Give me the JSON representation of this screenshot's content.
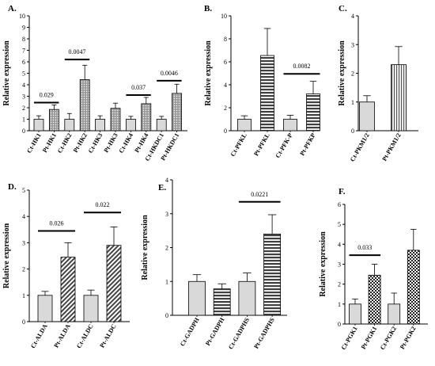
{
  "colors": {
    "light_bar": "#d9d9d9",
    "stroke": "#000000",
    "background": "#ffffff"
  },
  "chart_data": [
    {
      "panel": "A.",
      "type": "bar",
      "ylabel": "Relative expression",
      "ylim": [
        0,
        10
      ],
      "yticks": [
        0,
        1,
        2,
        3,
        4,
        5,
        6,
        7,
        8,
        9,
        10
      ],
      "categories": [
        "Ct-HK1",
        "Pt-HK1",
        "Ct-HK2",
        "Pt-HK2",
        "Ct-HK3",
        "Pt-HK3",
        "Ct-HK4",
        "Pt-HK4",
        "Ct-HKDC1",
        "Pt-HKDC1"
      ],
      "values": [
        1.0,
        1.85,
        1.0,
        4.45,
        1.0,
        1.95,
        1.0,
        2.35,
        1.0,
        3.25
      ],
      "errors": [
        0.3,
        0.4,
        0.5,
        1.25,
        0.3,
        0.45,
        0.25,
        0.55,
        0.25,
        0.8
      ],
      "fills": [
        "light",
        "dots",
        "light",
        "dots",
        "light",
        "dots",
        "light",
        "dots",
        "light",
        "dots"
      ],
      "annotations": [
        {
          "label": "0.029",
          "from": 0,
          "to": 1,
          "y": 2.45
        },
        {
          "label": "0.0047",
          "from": 2,
          "to": 3,
          "y": 6.2
        },
        {
          "label": "0.037",
          "from": 6,
          "to": 7,
          "y": 3.1
        },
        {
          "label": "0.0046",
          "from": 8,
          "to": 9,
          "y": 4.35
        }
      ]
    },
    {
      "panel": "B.",
      "type": "bar",
      "ylabel": "Relative expression",
      "ylim": [
        0,
        10
      ],
      "yticks": [
        0,
        2,
        4,
        6,
        8,
        10
      ],
      "categories": [
        "Ct-PFKL",
        "Pt-PFKL",
        "Ct-PFK-P",
        "Pt-PFKP"
      ],
      "values": [
        1.0,
        6.55,
        1.0,
        3.2
      ],
      "errors": [
        0.3,
        2.35,
        0.35,
        1.1
      ],
      "fills": [
        "light",
        "hstripe",
        "light",
        "hstripe"
      ],
      "annotations": [
        {
          "label": "0.0082",
          "from": 2,
          "to": 3,
          "y": 4.95
        }
      ]
    },
    {
      "panel": "C.",
      "type": "bar",
      "ylabel": "Relative expression",
      "ylim": [
        0,
        4
      ],
      "yticks": [
        0,
        1,
        2,
        3,
        4
      ],
      "categories": [
        "Ct-PKM1/2",
        "Pt-PKM1/2"
      ],
      "values": [
        1.0,
        2.3
      ],
      "errors": [
        0.22,
        0.63
      ],
      "fills": [
        "light",
        "vstripe"
      ],
      "annotations": []
    },
    {
      "panel": "D.",
      "type": "bar",
      "ylabel": "Relative expression",
      "ylim": [
        0,
        5
      ],
      "yticks": [
        0,
        1,
        2,
        3,
        4,
        5
      ],
      "categories": [
        "Ct-ALDA",
        "Pt-ALDA",
        "Ct-ALDC",
        "Pt-ALDC"
      ],
      "values": [
        1.0,
        2.45,
        1.0,
        2.9
      ],
      "errors": [
        0.15,
        0.55,
        0.2,
        0.7
      ],
      "fills": [
        "light",
        "diag",
        "light",
        "diag"
      ],
      "annotations": [
        {
          "label": "0.026",
          "from": 0,
          "to": 1,
          "y": 3.45
        },
        {
          "label": "0.022",
          "from": 2,
          "to": 3,
          "y": 4.15
        }
      ]
    },
    {
      "panel": "E.",
      "type": "bar",
      "ylabel": "Relative expression",
      "ylim": [
        0,
        4
      ],
      "yticks": [
        0,
        1,
        2,
        3,
        4
      ],
      "categories": [
        "Ct-GADPH",
        "Pt-GADPH",
        "Ct-GADPHS",
        "Pt-GADPHS"
      ],
      "values": [
        1.0,
        0.78,
        1.0,
        2.4
      ],
      "errors": [
        0.2,
        0.15,
        0.25,
        0.57
      ],
      "fills": [
        "light",
        "hstripe",
        "light",
        "hstripe"
      ],
      "annotations": [
        {
          "label": "0.0221",
          "from": 2,
          "to": 3,
          "y": 3.35
        }
      ]
    },
    {
      "panel": "F.",
      "type": "bar",
      "ylabel": "Relative expression",
      "ylim": [
        0,
        6
      ],
      "yticks": [
        0,
        1,
        2,
        3,
        4,
        5,
        6
      ],
      "categories": [
        "Ct-PGK1",
        "Pt-PGK1",
        "Ct-PGK2",
        "Pt-PGK2"
      ],
      "values": [
        1.0,
        2.45,
        1.0,
        3.7
      ],
      "errors": [
        0.25,
        0.55,
        0.55,
        1.05
      ],
      "fills": [
        "light",
        "check",
        "light",
        "check"
      ],
      "annotations": [
        {
          "label": "0.033",
          "from": 0,
          "to": 1,
          "y": 3.45
        }
      ]
    }
  ]
}
